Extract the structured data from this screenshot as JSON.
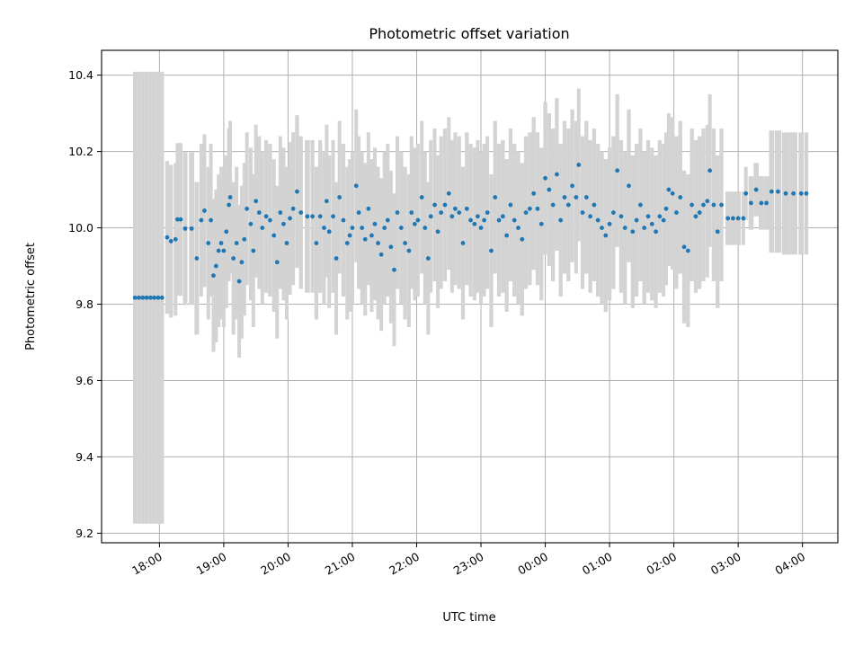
{
  "chart_data": {
    "type": "scatter",
    "title": "Photometric offset variation",
    "xlabel": "UTC time",
    "ylabel": "Photometric offset",
    "x_tick_labels": [
      "18:00",
      "19:00",
      "20:00",
      "21:00",
      "22:00",
      "23:00",
      "00:00",
      "01:00",
      "02:00",
      "03:00",
      "04:00"
    ],
    "x_tick_values_hours": [
      18,
      19,
      20,
      21,
      22,
      23,
      24,
      25,
      26,
      27,
      28
    ],
    "y_ticks": [
      9.2,
      9.4,
      9.6,
      9.8,
      10.0,
      10.2,
      10.4
    ],
    "xlim_hours": [
      17.1,
      28.55
    ],
    "ylim": [
      9.175,
      10.465
    ],
    "grid": true,
    "colors": {
      "points": "#1f77b4",
      "errorbars": "#d3d3d3"
    },
    "series": [
      {
        "points": [
          [
            17.62,
            9.817,
            0.592
          ],
          [
            17.68,
            9.817,
            0.592
          ],
          [
            17.74,
            9.817,
            0.592
          ],
          [
            17.8,
            9.817,
            0.592
          ],
          [
            17.86,
            9.817,
            0.592
          ],
          [
            17.92,
            9.817,
            0.592
          ],
          [
            17.98,
            9.817,
            0.592
          ],
          [
            18.04,
            9.817,
            0.592
          ],
          [
            18.12,
            9.975,
            0.2
          ],
          [
            18.18,
            9.965,
            0.2
          ],
          [
            18.25,
            9.97,
            0.2
          ],
          [
            18.28,
            10.022,
            0.2
          ],
          [
            18.33,
            10.022,
            0.2
          ],
          [
            18.4,
            9.998,
            0.2
          ],
          [
            18.5,
            9.998,
            0.2
          ],
          [
            18.58,
            9.92,
            0.2
          ],
          [
            18.65,
            10.02,
            0.2
          ],
          [
            18.7,
            10.045,
            0.2
          ],
          [
            18.76,
            9.96,
            0.2
          ],
          [
            18.8,
            10.02,
            0.2
          ],
          [
            18.84,
            9.875,
            0.2
          ],
          [
            18.88,
            9.9,
            0.2
          ],
          [
            18.92,
            9.94,
            0.2
          ],
          [
            18.96,
            9.96,
            0.2
          ],
          [
            19.0,
            9.94,
            0.2
          ],
          [
            19.04,
            9.99,
            0.2
          ],
          [
            19.08,
            10.06,
            0.2
          ],
          [
            19.1,
            10.08,
            0.2
          ],
          [
            19.15,
            9.92,
            0.2
          ],
          [
            19.2,
            9.96,
            0.2
          ],
          [
            19.24,
            9.86,
            0.2
          ],
          [
            19.28,
            9.91,
            0.2
          ],
          [
            19.32,
            9.97,
            0.2
          ],
          [
            19.36,
            10.05,
            0.2
          ],
          [
            19.42,
            10.01,
            0.2
          ],
          [
            19.46,
            9.94,
            0.2
          ],
          [
            19.5,
            10.07,
            0.2
          ],
          [
            19.55,
            10.04,
            0.2
          ],
          [
            19.6,
            10.0,
            0.2
          ],
          [
            19.66,
            10.03,
            0.2
          ],
          [
            19.72,
            10.02,
            0.2
          ],
          [
            19.78,
            9.98,
            0.2
          ],
          [
            19.83,
            9.91,
            0.2
          ],
          [
            19.88,
            10.04,
            0.2
          ],
          [
            19.93,
            10.01,
            0.2
          ],
          [
            19.98,
            9.96,
            0.2
          ],
          [
            20.03,
            10.025,
            0.2
          ],
          [
            20.08,
            10.05,
            0.2
          ],
          [
            20.14,
            10.095,
            0.2
          ],
          [
            20.2,
            10.04,
            0.2
          ],
          [
            20.3,
            10.03,
            0.2
          ],
          [
            20.38,
            10.03,
            0.2
          ],
          [
            20.44,
            9.96,
            0.2
          ],
          [
            20.5,
            10.03,
            0.2
          ],
          [
            20.56,
            10.0,
            0.2
          ],
          [
            20.6,
            10.07,
            0.2
          ],
          [
            20.64,
            9.99,
            0.2
          ],
          [
            20.7,
            10.03,
            0.2
          ],
          [
            20.75,
            9.92,
            0.2
          ],
          [
            20.8,
            10.08,
            0.2
          ],
          [
            20.86,
            10.02,
            0.2
          ],
          [
            20.92,
            9.96,
            0.2
          ],
          [
            20.96,
            9.98,
            0.2
          ],
          [
            21.0,
            10.0,
            0.2
          ],
          [
            21.06,
            10.11,
            0.2
          ],
          [
            21.1,
            10.04,
            0.2
          ],
          [
            21.15,
            10.0,
            0.2
          ],
          [
            21.2,
            9.97,
            0.2
          ],
          [
            21.25,
            10.05,
            0.2
          ],
          [
            21.3,
            9.98,
            0.2
          ],
          [
            21.35,
            10.01,
            0.2
          ],
          [
            21.4,
            9.96,
            0.2
          ],
          [
            21.45,
            9.93,
            0.2
          ],
          [
            21.5,
            10.0,
            0.2
          ],
          [
            21.55,
            10.02,
            0.2
          ],
          [
            21.6,
            9.95,
            0.2
          ],
          [
            21.65,
            9.89,
            0.2
          ],
          [
            21.7,
            10.04,
            0.2
          ],
          [
            21.76,
            10.0,
            0.2
          ],
          [
            21.82,
            9.96,
            0.2
          ],
          [
            21.88,
            9.94,
            0.2
          ],
          [
            21.92,
            10.04,
            0.2
          ],
          [
            21.97,
            10.01,
            0.2
          ],
          [
            22.02,
            10.02,
            0.2
          ],
          [
            22.08,
            10.08,
            0.2
          ],
          [
            22.13,
            10.0,
            0.2
          ],
          [
            22.18,
            9.92,
            0.2
          ],
          [
            22.22,
            10.03,
            0.2
          ],
          [
            22.28,
            10.06,
            0.2
          ],
          [
            22.33,
            9.99,
            0.2
          ],
          [
            22.38,
            10.04,
            0.2
          ],
          [
            22.44,
            10.06,
            0.2
          ],
          [
            22.5,
            10.09,
            0.2
          ],
          [
            22.55,
            10.03,
            0.2
          ],
          [
            22.6,
            10.05,
            0.2
          ],
          [
            22.66,
            10.04,
            0.2
          ],
          [
            22.72,
            9.96,
            0.2
          ],
          [
            22.78,
            10.05,
            0.2
          ],
          [
            22.84,
            10.02,
            0.2
          ],
          [
            22.9,
            10.01,
            0.2
          ],
          [
            22.95,
            10.03,
            0.2
          ],
          [
            23.0,
            10.0,
            0.2
          ],
          [
            23.05,
            10.02,
            0.2
          ],
          [
            23.1,
            10.04,
            0.2
          ],
          [
            23.16,
            9.94,
            0.2
          ],
          [
            23.22,
            10.08,
            0.2
          ],
          [
            23.28,
            10.02,
            0.2
          ],
          [
            23.34,
            10.03,
            0.2
          ],
          [
            23.4,
            9.98,
            0.2
          ],
          [
            23.46,
            10.06,
            0.2
          ],
          [
            23.52,
            10.02,
            0.2
          ],
          [
            23.58,
            10.0,
            0.2
          ],
          [
            23.64,
            9.97,
            0.2
          ],
          [
            23.7,
            10.04,
            0.2
          ],
          [
            23.76,
            10.05,
            0.2
          ],
          [
            23.82,
            10.09,
            0.2
          ],
          [
            23.88,
            10.05,
            0.2
          ],
          [
            23.94,
            10.01,
            0.2
          ],
          [
            24.0,
            10.13,
            0.2
          ],
          [
            24.06,
            10.1,
            0.2
          ],
          [
            24.12,
            10.06,
            0.2
          ],
          [
            24.18,
            10.14,
            0.2
          ],
          [
            24.24,
            10.02,
            0.2
          ],
          [
            24.3,
            10.08,
            0.2
          ],
          [
            24.36,
            10.06,
            0.2
          ],
          [
            24.42,
            10.11,
            0.2
          ],
          [
            24.48,
            10.08,
            0.2
          ],
          [
            24.52,
            10.165,
            0.2
          ],
          [
            24.58,
            10.04,
            0.2
          ],
          [
            24.64,
            10.08,
            0.2
          ],
          [
            24.7,
            10.03,
            0.2
          ],
          [
            24.76,
            10.06,
            0.2
          ],
          [
            24.82,
            10.02,
            0.2
          ],
          [
            24.88,
            10.0,
            0.2
          ],
          [
            24.94,
            9.98,
            0.2
          ],
          [
            25.0,
            10.01,
            0.2
          ],
          [
            25.06,
            10.04,
            0.2
          ],
          [
            25.12,
            10.15,
            0.2
          ],
          [
            25.18,
            10.03,
            0.2
          ],
          [
            25.24,
            10.0,
            0.2
          ],
          [
            25.3,
            10.11,
            0.2
          ],
          [
            25.36,
            9.99,
            0.2
          ],
          [
            25.42,
            10.02,
            0.2
          ],
          [
            25.48,
            10.06,
            0.2
          ],
          [
            25.54,
            10.0,
            0.2
          ],
          [
            25.6,
            10.03,
            0.2
          ],
          [
            25.66,
            10.01,
            0.2
          ],
          [
            25.72,
            9.99,
            0.2
          ],
          [
            25.78,
            10.03,
            0.2
          ],
          [
            25.84,
            10.02,
            0.2
          ],
          [
            25.88,
            10.05,
            0.2
          ],
          [
            25.92,
            10.1,
            0.2
          ],
          [
            25.98,
            10.09,
            0.2
          ],
          [
            26.04,
            10.04,
            0.2
          ],
          [
            26.1,
            10.08,
            0.2
          ],
          [
            26.16,
            9.95,
            0.2
          ],
          [
            26.22,
            9.94,
            0.2
          ],
          [
            26.28,
            10.06,
            0.2
          ],
          [
            26.34,
            10.03,
            0.2
          ],
          [
            26.4,
            10.04,
            0.2
          ],
          [
            26.46,
            10.06,
            0.2
          ],
          [
            26.52,
            10.07,
            0.2
          ],
          [
            26.56,
            10.15,
            0.2
          ],
          [
            26.62,
            10.06,
            0.2
          ],
          [
            26.68,
            9.99,
            0.2
          ],
          [
            26.74,
            10.06,
            0.2
          ],
          [
            26.84,
            10.025,
            0.07
          ],
          [
            26.92,
            10.025,
            0.07
          ],
          [
            27.0,
            10.025,
            0.07
          ],
          [
            27.08,
            10.025,
            0.07
          ],
          [
            27.12,
            10.09,
            0.07
          ],
          [
            27.2,
            10.065,
            0.07
          ],
          [
            27.28,
            10.1,
            0.07
          ],
          [
            27.36,
            10.065,
            0.07
          ],
          [
            27.44,
            10.065,
            0.07
          ],
          [
            27.52,
            10.095,
            0.16
          ],
          [
            27.62,
            10.095,
            0.16
          ],
          [
            27.74,
            10.09,
            0.16
          ],
          [
            27.86,
            10.09,
            0.16
          ],
          [
            27.98,
            10.09,
            0.16
          ],
          [
            28.06,
            10.09,
            0.16
          ]
        ]
      }
    ]
  }
}
